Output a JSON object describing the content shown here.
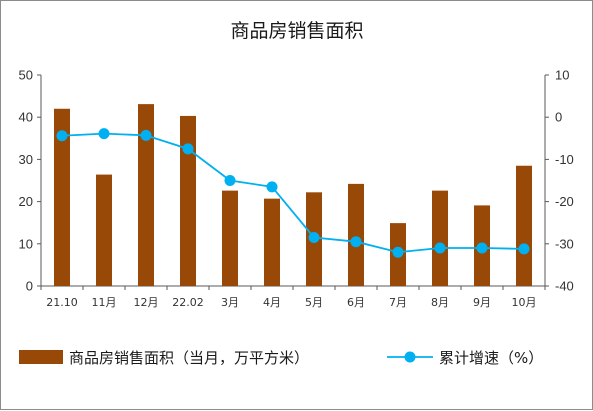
{
  "chart_data": {
    "type": "bar+line",
    "title": "商品房销售面积",
    "categories": [
      "21.10",
      "11月",
      "12月",
      "22.02",
      "3月",
      "4月",
      "5月",
      "6月",
      "7月",
      "8月",
      "9月",
      "10月"
    ],
    "series": [
      {
        "name": "商品房销售面积（当月，万平方米）",
        "type": "bar",
        "axis": "left",
        "color": "#984807",
        "values": [
          42.0,
          26.4,
          43.1,
          40.3,
          22.6,
          20.7,
          22.2,
          24.2,
          14.9,
          22.6,
          19.1,
          28.5
        ]
      },
      {
        "name": "累计增速（%）",
        "type": "line",
        "axis": "right",
        "color": "#00b0f0",
        "values": [
          -4.4,
          -3.9,
          -4.3,
          -7.5,
          -15.0,
          -16.5,
          -28.5,
          -29.5,
          -32.0,
          -31.0,
          -31.0,
          -31.2
        ]
      }
    ],
    "y_left": {
      "min": 0,
      "max": 50,
      "ticks": [
        "0",
        "10",
        "20",
        "30",
        "40",
        "50"
      ]
    },
    "y_right": {
      "min": -40,
      "max": 10,
      "ticks": [
        "-40",
        "-30",
        "-20",
        "-10",
        "0",
        "10"
      ]
    },
    "grid": false,
    "legend_position": "bottom"
  }
}
